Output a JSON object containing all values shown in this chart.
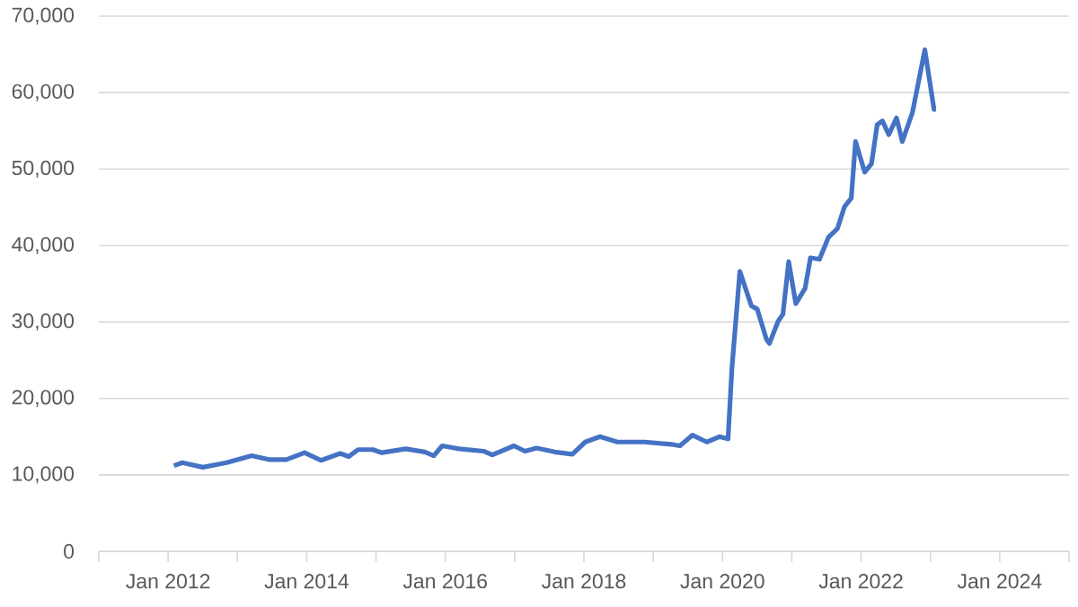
{
  "chart_data": {
    "type": "line",
    "x": [
      "2012-02-01",
      "2012-03-15",
      "2012-07-01",
      "2012-11-05",
      "2013-03-15",
      "2013-06-15",
      "2013-09-15",
      "2013-12-20",
      "2014-03-15",
      "2014-06-25",
      "2014-08-10",
      "2014-09-28",
      "2014-12-15",
      "2015-02-01",
      "2015-06-05",
      "2015-09-15",
      "2015-11-01",
      "2015-12-15",
      "2016-03-15",
      "2016-07-20",
      "2016-09-05",
      "2016-12-28",
      "2017-02-25",
      "2017-04-25",
      "2017-07-30",
      "2017-11-01",
      "2018-01-08",
      "2018-03-25",
      "2018-06-25",
      "2018-11-15",
      "2019-04-05",
      "2019-05-20",
      "2019-07-25",
      "2019-10-10",
      "2019-12-15",
      "2020-01-30",
      "2020-02-20",
      "2020-04-01",
      "2020-06-01",
      "2020-07-01",
      "2020-08-20",
      "2020-09-05",
      "2020-10-20",
      "2020-11-15",
      "2020-12-15",
      "2021-01-22",
      "2021-03-10",
      "2021-04-08",
      "2021-05-25",
      "2021-07-12",
      "2021-08-28",
      "2021-10-05",
      "2021-11-10",
      "2021-12-02",
      "2022-01-20",
      "2022-02-25",
      "2022-03-25",
      "2022-04-22",
      "2022-05-25",
      "2022-07-05",
      "2022-08-05",
      "2022-09-28",
      "2022-12-02",
      "2023-01-20",
      "2023-01-30"
    ],
    "series": [
      {
        "color": "#4472c4",
        "values": [
          11200,
          11600,
          11000,
          11600,
          12500,
          12000,
          12000,
          12900,
          11900,
          12800,
          12400,
          13300,
          13300,
          12900,
          13400,
          13000,
          12500,
          13800,
          13400,
          13100,
          12600,
          13800,
          13100,
          13500,
          13000,
          12700,
          14300,
          15000,
          14300,
          14300,
          14000,
          13800,
          15200,
          14300,
          15000,
          14700,
          23900,
          36600,
          32100,
          31700,
          27700,
          27200,
          30100,
          31000,
          37900,
          32400,
          34400,
          38400,
          38200,
          41100,
          42200,
          45100,
          46200,
          53600,
          49600,
          50700,
          55800,
          56300,
          54500,
          56700,
          53600,
          57400,
          65600,
          57800,
          57800
        ]
      }
    ],
    "xlim": [
      "2011-01-01",
      "2025-01-01"
    ],
    "xticks": [
      {
        "value": "2011-01-01",
        "label": null
      },
      {
        "value": "2012-01-01",
        "label": "Jan 2012"
      },
      {
        "value": "2013-01-01",
        "label": null
      },
      {
        "value": "2014-01-01",
        "label": "Jan 2014"
      },
      {
        "value": "2015-01-01",
        "label": null
      },
      {
        "value": "2016-01-01",
        "label": "Jan 2016"
      },
      {
        "value": "2017-01-01",
        "label": null
      },
      {
        "value": "2018-01-01",
        "label": "Jan 2018"
      },
      {
        "value": "2019-01-01",
        "label": null
      },
      {
        "value": "2020-01-01",
        "label": "Jan 2020"
      },
      {
        "value": "2021-01-01",
        "label": null
      },
      {
        "value": "2022-01-01",
        "label": "Jan 2022"
      },
      {
        "value": "2023-01-01",
        "label": null
      },
      {
        "value": "2024-01-01",
        "label": "Jan 2024"
      },
      {
        "value": "2025-01-01",
        "label": null
      }
    ],
    "ylim": [
      0,
      70000
    ],
    "yticks": [
      0,
      {
        "value": 10000,
        "label": "10,000"
      },
      {
        "value": 20000,
        "label": "20,000"
      },
      {
        "value": 30000,
        "label": "30,000"
      },
      {
        "value": 40000,
        "label": "40,000"
      },
      {
        "value": 50000,
        "label": "50,000"
      },
      {
        "value": 60000,
        "label": "60,000"
      },
      {
        "value": 70000,
        "label": "70,000"
      }
    ],
    "grid": "y",
    "marker": "none",
    "line_style": "solid"
  }
}
